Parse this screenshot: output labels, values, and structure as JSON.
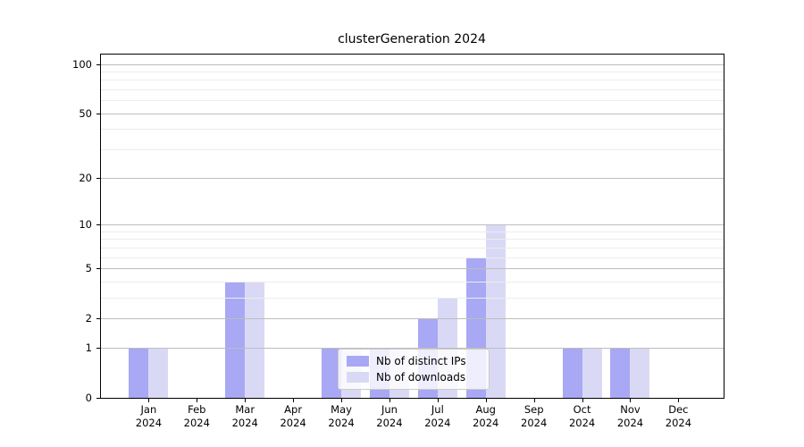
{
  "title": "clusterGeneration 2024",
  "colors": {
    "distinct_ips_bar": "#a8a8f4",
    "downloads_bar": "#d9d9f6",
    "axis": "#000000",
    "major_grid": "#bdbdbd",
    "minor_grid": "#ececec",
    "background": "#ffffff",
    "legend_border": "#cbcbcb"
  },
  "chart_data": {
    "type": "bar",
    "title": "clusterGeneration 2024",
    "xlabel": "",
    "ylabel": "",
    "categories": [
      {
        "line1": "Jan",
        "line2": "2024"
      },
      {
        "line1": "Feb",
        "line2": "2024"
      },
      {
        "line1": "Mar",
        "line2": "2024"
      },
      {
        "line1": "Apr",
        "line2": "2024"
      },
      {
        "line1": "May",
        "line2": "2024"
      },
      {
        "line1": "Jun",
        "line2": "2024"
      },
      {
        "line1": "Jul",
        "line2": "2024"
      },
      {
        "line1": "Aug",
        "line2": "2024"
      },
      {
        "line1": "Sep",
        "line2": "2024"
      },
      {
        "line1": "Oct",
        "line2": "2024"
      },
      {
        "line1": "Nov",
        "line2": "2024"
      },
      {
        "line1": "Dec",
        "line2": "2024"
      }
    ],
    "series": [
      {
        "name": "Nb of distinct IPs",
        "color": "#a8a8f4",
        "values": [
          1,
          0,
          4,
          0,
          1,
          1,
          2,
          6,
          0,
          1,
          1,
          0
        ]
      },
      {
        "name": "Nb of downloads",
        "color": "#d9d9f6",
        "values": [
          1,
          0,
          4,
          0,
          1,
          1,
          3,
          10,
          0,
          1,
          1,
          0
        ]
      }
    ],
    "y_axis": {
      "scale": "log1p",
      "major_ticks": [
        0,
        1,
        2,
        5,
        10,
        20,
        50,
        100
      ],
      "minor_gridlines": [
        3,
        4,
        6,
        7,
        8,
        9,
        30,
        40,
        60,
        70,
        80,
        90
      ],
      "ylim": [
        0,
        114
      ]
    },
    "grid": true,
    "legend_position": "lower center-left inside plot"
  },
  "legend": {
    "entries": [
      {
        "label": "Nb of distinct IPs"
      },
      {
        "label": "Nb of downloads"
      }
    ]
  }
}
